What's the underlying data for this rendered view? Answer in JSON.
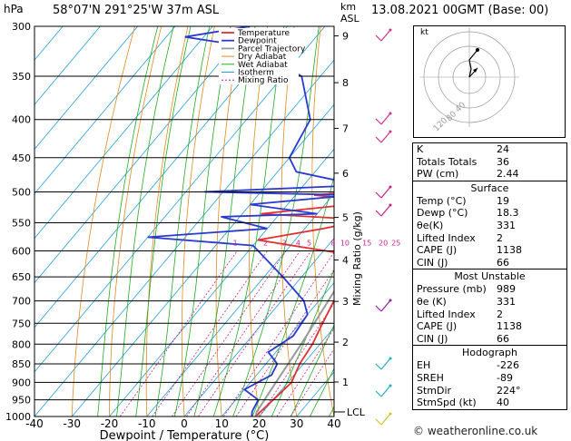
{
  "header": {
    "hpa_label": "hPa",
    "location": "58°07'N  291°25'W  37m  ASL",
    "km_label": "km",
    "asl_label": "ASL",
    "datetime": "13.08.2021  00GMT  (Base: 00)"
  },
  "chart_data": {
    "type": "line",
    "xlabel": "Dewpoint / Temperature (°C)",
    "ylabel": "hPa",
    "y2label": "Mixing Ratio (g/kg)",
    "xlim": [
      -40,
      40
    ],
    "ylim": [
      1000,
      300
    ],
    "y_scale": "log",
    "x_ticks": [
      -40,
      -30,
      -20,
      -10,
      0,
      10,
      20,
      30,
      40
    ],
    "pressure_levels": [
      300,
      350,
      400,
      450,
      500,
      550,
      600,
      650,
      700,
      750,
      800,
      850,
      900,
      950,
      1000
    ],
    "km_ticks": [
      {
        "label": "9",
        "p": 309
      },
      {
        "label": "8",
        "p": 357
      },
      {
        "label": "7",
        "p": 411
      },
      {
        "label": "6",
        "p": 472
      },
      {
        "label": "5",
        "p": 541
      },
      {
        "label": "4",
        "p": 617
      },
      {
        "label": "3",
        "p": 701
      },
      {
        "label": "2",
        "p": 795
      },
      {
        "label": "1",
        "p": 899
      }
    ],
    "lcl": {
      "label": "LCL",
      "p": 986
    },
    "mixing_ratio_labels": [
      "1",
      "2",
      "3",
      "4",
      "5",
      "8",
      "10",
      "15",
      "20",
      "25"
    ],
    "legend": [
      "Temperature",
      "Dewpoint",
      "Parcel Trajectory",
      "Dry Adiabat",
      "Wet Adiabat",
      "Isotherm",
      "Mixing Ratio"
    ],
    "series": [
      {
        "name": "Temperature",
        "color": "#e03030",
        "points": [
          [
            19,
            1000
          ],
          [
            20,
            950
          ],
          [
            21,
            900
          ],
          [
            19,
            850
          ],
          [
            18,
            800
          ],
          [
            16,
            750
          ],
          [
            14,
            700
          ],
          [
            12,
            650
          ],
          [
            11,
            610
          ],
          [
            -20,
            580
          ],
          [
            -5,
            560
          ],
          [
            4,
            545
          ],
          [
            -25,
            535
          ],
          [
            4,
            515
          ],
          [
            -15,
            505
          ],
          [
            4,
            495
          ],
          [
            -5,
            485
          ],
          [
            0,
            470
          ],
          [
            -2,
            450
          ],
          [
            -9,
            400
          ],
          [
            -16,
            350
          ],
          [
            -20,
            310
          ],
          [
            -25,
            305
          ]
        ]
      },
      {
        "name": "Dewpoint",
        "color": "#2a3ad0",
        "points": [
          [
            18,
            1000
          ],
          [
            17,
            985
          ],
          [
            16,
            950
          ],
          [
            10,
            920
          ],
          [
            14,
            880
          ],
          [
            13,
            850
          ],
          [
            8,
            820
          ],
          [
            11,
            780
          ],
          [
            10,
            730
          ],
          [
            6,
            700
          ],
          [
            -5,
            650
          ],
          [
            -20,
            590
          ],
          [
            -50,
            575
          ],
          [
            -20,
            560
          ],
          [
            -35,
            540
          ],
          [
            -10,
            535
          ],
          [
            -30,
            520
          ],
          [
            -5,
            505
          ],
          [
            -45,
            500
          ],
          [
            -5,
            490
          ],
          [
            -25,
            470
          ],
          [
            -30,
            450
          ],
          [
            -33,
            400
          ],
          [
            -45,
            350
          ],
          [
            -65,
            320
          ],
          [
            -85,
            310
          ],
          [
            -70,
            300
          ]
        ]
      },
      {
        "name": "Parcel Trajectory",
        "color": "#9a9a9a",
        "points": [
          [
            19,
            1000
          ],
          [
            18.3,
            986
          ],
          [
            16.8,
            900
          ],
          [
            15,
            800
          ],
          [
            12.5,
            700
          ],
          [
            9.5,
            600
          ],
          [
            5.5,
            500
          ],
          [
            -0.5,
            400
          ],
          [
            -6,
            330
          ],
          [
            -8,
            300
          ]
        ]
      }
    ]
  },
  "hodograph": {
    "label": "kt",
    "rings": [
      "40",
      "80",
      "120"
    ]
  },
  "indices": [
    {
      "label": "K",
      "value": "24"
    },
    {
      "label": "Totals Totals",
      "value": "36"
    },
    {
      "label": "PW (cm)",
      "value": "2.44"
    }
  ],
  "surface": {
    "title": "Surface",
    "rows": [
      {
        "label": "Temp (°C)",
        "value": "19"
      },
      {
        "label": "Dewp (°C)",
        "value": "18.3"
      },
      {
        "label": "θe(K)",
        "value": "331"
      },
      {
        "label": "Lifted Index",
        "value": "2"
      },
      {
        "label": "CAPE (J)",
        "value": "1138"
      },
      {
        "label": "CIN (J)",
        "value": "66"
      }
    ]
  },
  "most_unstable": {
    "title": "Most Unstable",
    "rows": [
      {
        "label": "Pressure (mb)",
        "value": "989"
      },
      {
        "label": "θe (K)",
        "value": "331"
      },
      {
        "label": "Lifted Index",
        "value": "2"
      },
      {
        "label": "CAPE (J)",
        "value": "1138"
      },
      {
        "label": "CIN (J)",
        "value": "66"
      }
    ]
  },
  "hodo_table": {
    "title": "Hodograph",
    "rows": [
      {
        "label": "EH",
        "value": "-226"
      },
      {
        "label": "SREH",
        "value": "-89"
      },
      {
        "label": "StmDir",
        "value": "224°"
      },
      {
        "label": "StmSpd (kt)",
        "value": "40"
      }
    ]
  },
  "footer": {
    "copyright": "© weatheronline.co.uk"
  }
}
